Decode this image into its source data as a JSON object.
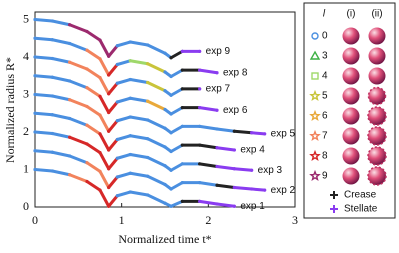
{
  "chart_data": {
    "type": "line",
    "xlabel": "Normalized time t*",
    "ylabel": "Normalized radius R*",
    "xlim": [
      0,
      3
    ],
    "ylim": [
      0,
      5.2
    ],
    "xticks": [
      0,
      1,
      2,
      3
    ],
    "yticks": [
      0,
      1,
      2,
      3,
      4,
      5
    ],
    "series": [
      {
        "name": "exp 9",
        "x": [
          0,
          0.2,
          0.4,
          0.6,
          0.75,
          0.85,
          0.95,
          1.1,
          1.3,
          1.5,
          1.57,
          1.7,
          1.9
        ],
        "values": [
          5,
          4.96,
          4.86,
          4.68,
          4.45,
          4.02,
          4.3,
          4.4,
          4.32,
          4.1,
          3.98,
          4.15,
          4.15
        ],
        "colors": [
          "#4a8fe0",
          "#4a8fe0",
          "#9c2a6e",
          "#9c2a6e",
          "#9c2a6e",
          "#9c2a6e",
          "#4a8fe0",
          "#4a8fe0",
          "#4a8fe0",
          "#4a8fe0",
          "#222222",
          "#8a3cf0",
          "#8a3cf0"
        ]
      },
      {
        "name": "exp 8",
        "x": [
          0,
          0.2,
          0.4,
          0.6,
          0.75,
          0.85,
          0.95,
          1.1,
          1.3,
          1.5,
          1.57,
          1.7,
          1.9,
          2.1
        ],
        "values": [
          4.5,
          4.46,
          4.36,
          4.18,
          3.95,
          3.52,
          3.8,
          3.9,
          3.82,
          3.6,
          3.48,
          3.65,
          3.65,
          3.58
        ],
        "colors": [
          "#4a8fe0",
          "#4a8fe0",
          "#4a8fe0",
          "#f2835c",
          "#f2835c",
          "#d62828",
          "#4a8fe0",
          "#9fd86a",
          "#c9c43a",
          "#4a8fe0",
          "#4a8fe0",
          "#222222",
          "#8a3cf0",
          "#8a3cf0"
        ]
      },
      {
        "name": "exp 7",
        "x": [
          0,
          0.2,
          0.4,
          0.6,
          0.75,
          0.85,
          0.95,
          1.1,
          1.3,
          1.5,
          1.57,
          1.7,
          1.9
        ],
        "values": [
          4,
          3.96,
          3.86,
          3.68,
          3.45,
          3.02,
          3.3,
          3.4,
          3.32,
          3.1,
          2.98,
          3.15,
          3.15
        ],
        "colors": [
          "#4a8fe0",
          "#4a8fe0",
          "#f2835c",
          "#f2835c",
          "#f2835c",
          "#d62828",
          "#4a8fe0",
          "#4a8fe0",
          "#c9c43a",
          "#4a8fe0",
          "#4a8fe0",
          "#222222",
          "#8a3cf0"
        ]
      },
      {
        "name": "exp 6",
        "x": [
          0,
          0.2,
          0.4,
          0.6,
          0.75,
          0.85,
          0.95,
          1.1,
          1.3,
          1.5,
          1.57,
          1.7,
          1.9,
          2.1
        ],
        "values": [
          3.5,
          3.46,
          3.36,
          3.18,
          2.95,
          2.52,
          2.8,
          2.9,
          2.82,
          2.6,
          2.48,
          2.65,
          2.65,
          2.58
        ],
        "colors": [
          "#4a8fe0",
          "#4a8fe0",
          "#4a8fe0",
          "#f2835c",
          "#d62828",
          "#d62828",
          "#4a8fe0",
          "#4a8fe0",
          "#e9a93a",
          "#4a8fe0",
          "#4a8fe0",
          "#222222",
          "#8a3cf0",
          "#8a3cf0"
        ]
      },
      {
        "name": "exp 5",
        "x": [
          0,
          0.2,
          0.4,
          0.6,
          0.75,
          0.85,
          0.95,
          1.1,
          1.3,
          1.5,
          1.57,
          1.7,
          1.9,
          2.1,
          2.3,
          2.5,
          2.65
        ],
        "values": [
          3,
          2.96,
          2.86,
          2.68,
          2.45,
          2.02,
          2.3,
          2.4,
          2.32,
          2.1,
          1.98,
          2.15,
          2.15,
          2.08,
          2.02,
          1.98,
          1.95
        ],
        "colors": [
          "#4a8fe0",
          "#4a8fe0",
          "#f2835c",
          "#f2835c",
          "#f2835c",
          "#d62828",
          "#4a8fe0",
          "#4a8fe0",
          "#4a8fe0",
          "#4a8fe0",
          "#4a8fe0",
          "#4a8fe0",
          "#4a8fe0",
          "#4a8fe0",
          "#222222",
          "#8a3cf0",
          "#8a3cf0"
        ]
      },
      {
        "name": "exp 4",
        "x": [
          0,
          0.2,
          0.4,
          0.6,
          0.75,
          0.85,
          0.95,
          1.1,
          1.3,
          1.5,
          1.57,
          1.7,
          1.9,
          2.1,
          2.3
        ],
        "values": [
          2.5,
          2.46,
          2.36,
          2.18,
          1.95,
          1.52,
          1.8,
          1.9,
          1.82,
          1.6,
          1.48,
          1.65,
          1.65,
          1.58,
          1.52
        ],
        "colors": [
          "#4a8fe0",
          "#4a8fe0",
          "#4a8fe0",
          "#f2835c",
          "#d62828",
          "#d62828",
          "#4a8fe0",
          "#4a8fe0",
          "#4a8fe0",
          "#4a8fe0",
          "#4a8fe0",
          "#222222",
          "#222222",
          "#8a3cf0",
          "#8a3cf0"
        ]
      },
      {
        "name": "exp 3",
        "x": [
          0,
          0.2,
          0.4,
          0.6,
          0.75,
          0.85,
          0.95,
          1.1,
          1.3,
          1.5,
          1.57,
          1.7,
          1.9,
          2.1,
          2.3,
          2.5
        ],
        "values": [
          2,
          1.96,
          1.86,
          1.68,
          1.45,
          1.02,
          1.3,
          1.4,
          1.32,
          1.1,
          0.98,
          1.15,
          1.15,
          1.08,
          1.02,
          0.98
        ],
        "colors": [
          "#4a8fe0",
          "#4a8fe0",
          "#d62828",
          "#d62828",
          "#d62828",
          "#d62828",
          "#4a8fe0",
          "#4a8fe0",
          "#4a8fe0",
          "#4a8fe0",
          "#4a8fe0",
          "#4a8fe0",
          "#222222",
          "#8a3cf0",
          "#8a3cf0",
          "#8a3cf0"
        ]
      },
      {
        "name": "exp 2",
        "x": [
          0,
          0.2,
          0.4,
          0.6,
          0.75,
          0.85,
          0.95,
          1.1,
          1.3,
          1.5,
          1.57,
          1.7,
          1.9,
          2.1,
          2.3,
          2.5,
          2.65
        ],
        "values": [
          1.5,
          1.46,
          1.36,
          1.18,
          0.95,
          0.52,
          0.8,
          0.9,
          0.82,
          0.6,
          0.48,
          0.65,
          0.65,
          0.58,
          0.52,
          0.48,
          0.45
        ],
        "colors": [
          "#4a8fe0",
          "#4a8fe0",
          "#4a8fe0",
          "#f2835c",
          "#f2835c",
          "#d62828",
          "#4a8fe0",
          "#4a8fe0",
          "#4a8fe0",
          "#4a8fe0",
          "#4a8fe0",
          "#4a8fe0",
          "#4a8fe0",
          "#222222",
          "#8a3cf0",
          "#8a3cf0",
          "#8a3cf0"
        ]
      },
      {
        "name": "exp 1",
        "x": [
          0,
          0.2,
          0.4,
          0.6,
          0.75,
          0.85,
          0.95,
          1.1,
          1.3,
          1.5,
          1.57,
          1.7,
          1.9,
          2.1,
          2.3
        ],
        "values": [
          1,
          0.96,
          0.86,
          0.68,
          0.45,
          0.02,
          0.3,
          0.4,
          0.32,
          0.1,
          0.02,
          0.15,
          0.15,
          0.08,
          0.02
        ],
        "colors": [
          "#4a8fe0",
          "#4a8fe0",
          "#f2835c",
          "#d62828",
          "#d62828",
          "#d62828",
          "#4a8fe0",
          "#4a8fe0",
          "#4a8fe0",
          "#4a8fe0",
          "#4a8fe0",
          "#222222",
          "#8a3cf0",
          "#8a3cf0",
          "#8a3cf0"
        ]
      }
    ],
    "legend": {
      "header": [
        "l",
        "(i)",
        "(ii)"
      ],
      "items": [
        {
          "l": 0,
          "color": "#4a8fe0",
          "marker": "circle"
        },
        {
          "l": 3,
          "color": "#3cb043",
          "marker": "triangle"
        },
        {
          "l": 4,
          "color": "#9fd86a",
          "marker": "square"
        },
        {
          "l": 5,
          "color": "#c9c43a",
          "marker": "star"
        },
        {
          "l": 6,
          "color": "#e9a93a",
          "marker": "star"
        },
        {
          "l": 7,
          "color": "#f2835c",
          "marker": "star"
        },
        {
          "l": 8,
          "color": "#d62828",
          "marker": "star"
        },
        {
          "l": 9,
          "color": "#9c2a6e",
          "marker": "star"
        }
      ],
      "extra": [
        {
          "label": "Crease",
          "color": "#222222",
          "marker": "plus"
        },
        {
          "label": "Stellate",
          "color": "#8a3cf0",
          "marker": "plus"
        }
      ]
    }
  }
}
